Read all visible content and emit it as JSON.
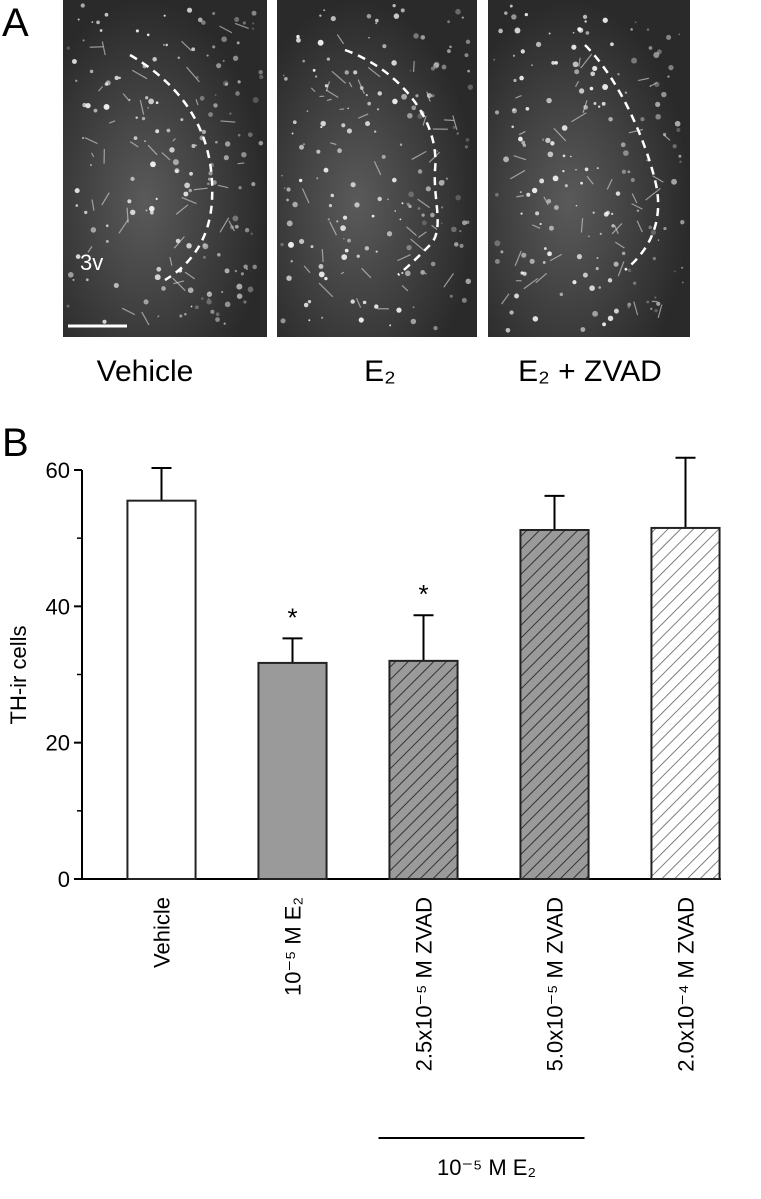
{
  "panel_labels": [
    "A",
    "B"
  ],
  "micrographs": {
    "labels": [
      "Vehicle",
      "E₂",
      "E₂ + ZVAD"
    ],
    "annotation": "3v"
  },
  "chart_data": {
    "type": "bar",
    "ylabel": "TH-ir cells",
    "categories": [
      "Vehicle",
      "10⁻⁵ M E₂",
      "2.5x10⁻⁵ M ZVAD",
      "5.0x10⁻⁵ M ZVAD",
      "2.0x10⁻⁴ M ZVAD"
    ],
    "values": [
      55.5,
      31.7,
      32,
      51.2,
      51.5
    ],
    "errors": [
      4.8,
      3.6,
      6.7,
      5,
      10.3
    ],
    "colors": [
      "#ffffff",
      "#9a9a9a",
      "#9a9a9a",
      "#9a9a9a",
      "#ffffff"
    ],
    "hatch": [
      false,
      false,
      true,
      true,
      true
    ],
    "significance": [
      null,
      "*",
      "*",
      null,
      null
    ],
    "group_label": "10⁻⁵ M E₂",
    "ylim": [
      0,
      60
    ],
    "yticks": [
      0,
      20,
      40,
      60
    ],
    "yminor": [
      10,
      30,
      50
    ]
  }
}
